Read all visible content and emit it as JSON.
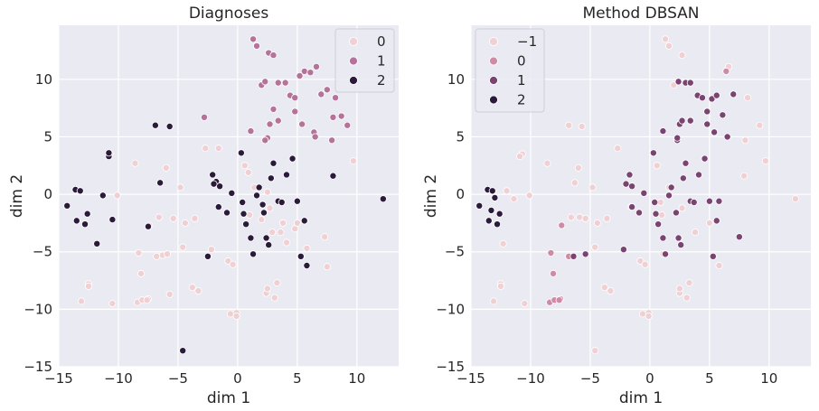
{
  "chart_data": [
    {
      "type": "scatter",
      "title": "Diagnoses",
      "xlabel": "dim 1",
      "ylabel": "dim 2",
      "xlim": [
        -15,
        13.5
      ],
      "ylim": [
        -15,
        14.7
      ],
      "xticks": [
        -15,
        -10,
        -5,
        0,
        5,
        10
      ],
      "yticks": [
        -15,
        -10,
        -5,
        0,
        5,
        10
      ],
      "xtick_labels": [
        "−15",
        "−10",
        "−5",
        "0",
        "5",
        "10"
      ],
      "ytick_labels": [
        "−15",
        "−10",
        "−5",
        "0",
        "5",
        "10"
      ],
      "grid": true,
      "legend_position": "top-right",
      "legend": [
        {
          "label": "0",
          "color": "#f0d0d3"
        },
        {
          "label": "1",
          "color": "#b5729a"
        },
        {
          "label": "2",
          "color": "#2b1a3a"
        }
      ],
      "series": [
        {
          "name": "0",
          "color": "#f0d0d3",
          "x": [
            -13.1,
            -12.5,
            -12.5,
            -10.5,
            -10.1,
            -10.7,
            -8.6,
            -8.3,
            -7.4,
            -6.8,
            -6.3,
            -5.7,
            -5.9,
            -8.1,
            -8.4,
            -8.0,
            -7.5,
            -7.6,
            -6.6,
            -6.8,
            -6.0,
            -5.4,
            -4.8,
            -4.6,
            -3.6,
            -3.3,
            -4.4,
            -3.8,
            -2.7,
            -2.2,
            -1.6,
            -0.8,
            -0.4,
            -0.6,
            -0.1,
            -0.1,
            0.6,
            0.9,
            1.0,
            1.4,
            2.0,
            2.4,
            2.5,
            2.5,
            2.7,
            2.9,
            3.1,
            3.3,
            3.6,
            3.8,
            4.1,
            4.8,
            5.0,
            5.8,
            7.5,
            7.3,
            9.7
          ],
          "y": [
            -9.3,
            -7.8,
            -8.0,
            -9.5,
            -0.1,
            3.5,
            2.7,
            -5.1,
            -2.7,
            -5.4,
            -5.3,
            -8.7,
            -5.2,
            -6.9,
            -9.4,
            -9.2,
            -9.1,
            -9.2,
            -2.0,
            -5.4,
            2.3,
            -2.1,
            0.6,
            -4.6,
            -2.1,
            -8.4,
            -2.5,
            -8.1,
            4.0,
            -4.8,
            4.0,
            -5.8,
            -6.1,
            -10.4,
            -10.3,
            -10.6,
            2.5,
            1.9,
            -1.8,
            0.6,
            -2.2,
            -8.6,
            0.2,
            -8.2,
            -1.2,
            -3.3,
            -9.0,
            -7.7,
            -3.3,
            -2.5,
            -4.2,
            -3.0,
            -2.5,
            -4.7,
            -6.3,
            -3.7,
            2.9
          ]
        },
        {
          "name": "1",
          "color": "#b5729a",
          "x": [
            1.3,
            1.6,
            2.0,
            2.3,
            2.6,
            3.0,
            3.4,
            4.0,
            4.4,
            4.8,
            5.2,
            5.6,
            6.1,
            6.6,
            7.0,
            7.5,
            8.0,
            8.7,
            9.2,
            -2.8,
            1.1,
            2.5,
            2.7,
            3.4,
            4.8,
            5.4,
            6.4,
            6.5,
            7.9,
            8.2,
            2.3,
            3.0
          ],
          "y": [
            13.5,
            12.9,
            9.5,
            9.8,
            12.3,
            12.1,
            9.7,
            9.7,
            8.6,
            8.4,
            10.3,
            10.7,
            10.6,
            11.1,
            8.7,
            9.1,
            6.7,
            6.8,
            6.0,
            6.7,
            5.5,
            4.9,
            6.1,
            6.4,
            7.2,
            6.1,
            5.4,
            5.0,
            4.7,
            8.4,
            4.7,
            7.4
          ],
          "override_note": ""
        },
        {
          "name": "2",
          "color": "#2b1a3a",
          "x": [
            -14.3,
            -13.6,
            -13.2,
            -13.5,
            -12.6,
            -12.8,
            -11.8,
            -11.3,
            -10.5,
            -10.8,
            -10.8,
            -7.5,
            -6.9,
            -6.5,
            -5.7,
            -4.6,
            -2.5,
            -2.1,
            -1.8,
            -1.5,
            -0.9,
            -0.5,
            0.3,
            0.4,
            0.5,
            0.7,
            1.1,
            1.3,
            1.6,
            1.8,
            2.2,
            2.4,
            2.6,
            2.8,
            3.0,
            3.4,
            3.7,
            4.1,
            4.6,
            5.0,
            5.3,
            5.6,
            5.8,
            8.0,
            12.2,
            -2.0,
            -1.6,
            2.1
          ],
          "y": [
            -1.0,
            0.4,
            0.3,
            -2.3,
            -1.7,
            -2.6,
            -4.3,
            -0.1,
            -2.2,
            3.3,
            3.6,
            -2.8,
            6.0,
            1.0,
            5.9,
            -13.6,
            -5.4,
            1.7,
            1.1,
            0.7,
            -1.6,
            0.1,
            3.6,
            -0.7,
            -1.7,
            -2.6,
            -3.8,
            -5.2,
            -0.1,
            0.6,
            -1.6,
            -3.8,
            -4.4,
            1.4,
            2.7,
            -0.6,
            -0.7,
            1.7,
            3.1,
            -0.6,
            -5.4,
            -2.3,
            -6.2,
            1.6,
            -0.4,
            0.9,
            -1.1,
            -0.9
          ]
        }
      ]
    },
    {
      "type": "scatter",
      "title": "Method DBSAN",
      "xlabel": "dim 1",
      "ylabel": "dim 2",
      "xlim": [
        -15,
        13.5
      ],
      "ylim": [
        -15,
        14.7
      ],
      "xticks": [
        -15,
        -10,
        -5,
        0,
        5,
        10
      ],
      "yticks": [
        -15,
        -10,
        -5,
        0,
        5,
        10
      ],
      "xtick_labels": [
        "−15",
        "−10",
        "−5",
        "0",
        "5",
        "10"
      ],
      "ytick_labels": [
        "−15",
        "−10",
        "−5",
        "0",
        "5",
        "10"
      ],
      "grid": true,
      "legend_position": "top-left",
      "legend": [
        {
          "label": "−1",
          "color": "#f0d0d3"
        },
        {
          "label": "0",
          "color": "#cf8aa6"
        },
        {
          "label": "1",
          "color": "#7a4372"
        },
        {
          "label": "2",
          "color": "#2b1a3a"
        }
      ],
      "series": [
        {
          "name": "−1",
          "color": "#f0d0d3",
          "x": [
            -13.1,
            -12.5,
            -12.5,
            -10.5,
            -10.1,
            -10.7,
            -8.6,
            -12.0,
            -11.4,
            -12.3,
            -10.9,
            -6.8,
            -6.3,
            -5.7,
            -5.9,
            -6.6,
            -6.0,
            -5.4,
            -4.8,
            -4.6,
            -4.6,
            -3.6,
            -3.3,
            -4.4,
            -3.8,
            -2.7,
            -0.8,
            -0.4,
            -0.6,
            -0.1,
            -0.1,
            -1.6,
            0.6,
            0.9,
            1.0,
            1.3,
            1.6,
            2.0,
            2.5,
            2.5,
            2.7,
            3.1,
            3.3,
            3.8,
            5.0,
            5.8,
            7.5,
            7.9,
            8.2,
            9.2,
            9.7,
            12.2,
            6.6,
            1.1,
            2.7,
            8.0,
            1.6
          ],
          "y": [
            -9.3,
            -7.8,
            -8.0,
            -9.5,
            -0.1,
            3.5,
            2.7,
            0.3,
            -0.4,
            -4.3,
            3.3,
            6.0,
            1.0,
            5.9,
            -2.0,
            -2.0,
            2.3,
            -2.1,
            0.6,
            -4.6,
            -13.6,
            -2.1,
            -8.4,
            -2.5,
            -8.1,
            4.0,
            -5.8,
            -6.1,
            -10.4,
            -10.3,
            -10.6,
            -1.1,
            2.5,
            -0.7,
            -1.8,
            13.5,
            12.9,
            9.5,
            -8.6,
            -8.2,
            -1.2,
            -9.0,
            -7.7,
            -3.3,
            -2.5,
            -6.2,
            -3.7,
            1.6,
            8.4,
            6.0,
            2.9,
            -0.4,
            11.1,
            -5.2,
            12.1,
            4.7,
            0.6
          ]
        },
        {
          "name": "0",
          "color": "#cf8aa6",
          "x": [
            -8.3,
            -7.4,
            -8.1,
            -8.4,
            -8.0,
            -7.5,
            -7.6,
            -6.8,
            6.4
          ],
          "y": [
            -5.1,
            -2.7,
            -6.9,
            -9.4,
            -9.2,
            -9.1,
            -9.2,
            -5.4,
            10.7
          ]
        },
        {
          "name": "1",
          "color": "#7a4372",
          "x": [
            -6.4,
            -5.4,
            -2.2,
            -2.0,
            -1.7,
            -1.5,
            -0.9,
            -0.5,
            0.3,
            0.4,
            0.5,
            0.7,
            1.1,
            1.3,
            1.6,
            1.8,
            2.2,
            2.3,
            2.4,
            2.6,
            2.8,
            3.0,
            3.4,
            3.7,
            4.1,
            4.6,
            5.0,
            5.3,
            5.6,
            5.8,
            2.4,
            3.0,
            3.4,
            4.0,
            4.4,
            4.8,
            5.2,
            5.6,
            6.1,
            7.0,
            7.5,
            1.1,
            2.3,
            2.5,
            2.7,
            3.4,
            4.8,
            5.4,
            6.5,
            -1.5
          ],
          "y": [
            -5.4,
            -5.2,
            -4.8,
            0.9,
            1.7,
            0.7,
            -1.6,
            0.1,
            3.6,
            -0.7,
            -1.7,
            -2.6,
            -3.8,
            -5.2,
            -0.1,
            0.6,
            -1.6,
            4.7,
            -3.8,
            -4.4,
            1.4,
            2.7,
            -0.6,
            -0.7,
            1.7,
            3.1,
            -0.6,
            -5.4,
            -2.3,
            -0.6,
            9.8,
            9.7,
            9.7,
            8.6,
            8.4,
            7.2,
            8.3,
            8.6,
            6.9,
            8.7,
            -3.7,
            5.5,
            4.9,
            6.1,
            6.4,
            6.4,
            6.1,
            5.4,
            5.0,
            -1.1
          ]
        },
        {
          "name": "2",
          "color": "#2b1a3a",
          "x": [
            -14.3,
            -13.6,
            -13.2,
            -13.5,
            -12.6,
            -12.8,
            -13.0,
            -13.3
          ],
          "y": [
            -1.0,
            0.4,
            0.3,
            -2.3,
            -1.7,
            -2.6,
            -0.3,
            -1.4
          ]
        }
      ]
    }
  ]
}
